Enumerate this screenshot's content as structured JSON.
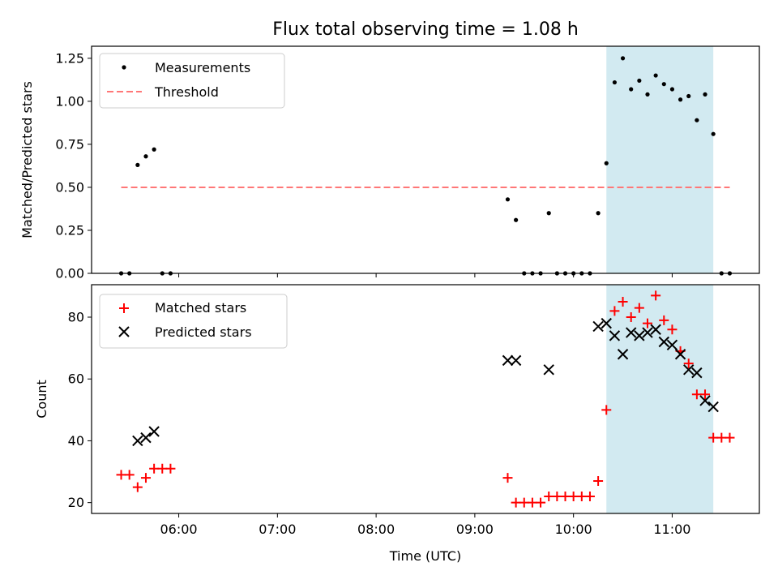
{
  "chart_data": [
    {
      "type": "scatter",
      "title": "Flux total observing time = 1.08 h",
      "ylabel": "Matched/Predicted stars",
      "xlabel": "",
      "ylim": [
        0,
        1.32
      ],
      "xlim": [
        "05:07",
        "11:53"
      ],
      "y_ticks": [
        "0.00",
        "0.25",
        "0.50",
        "0.75",
        "1.00",
        "1.25"
      ],
      "y_tick_values": [
        0,
        0.25,
        0.5,
        0.75,
        1.0,
        1.25
      ],
      "grid": false,
      "legend": "top-left",
      "highlight_span": {
        "start": "10:20",
        "end": "11:25",
        "color": "#add8e6"
      },
      "threshold": {
        "name": "Threshold",
        "value": 0.5,
        "start": "05:25",
        "end": "11:35",
        "color": "#ff7777"
      },
      "series": [
        {
          "name": "Measurements",
          "marker": "dot",
          "color": "#000000",
          "points": [
            [
              "05:25",
              0
            ],
            [
              "05:30",
              0
            ],
            [
              "05:35",
              0.63
            ],
            [
              "05:40",
              0.68
            ],
            [
              "05:45",
              0.72
            ],
            [
              "05:50",
              0
            ],
            [
              "05:55",
              0
            ],
            [
              "09:20",
              0.43
            ],
            [
              "09:25",
              0.31
            ],
            [
              "09:30",
              0
            ],
            [
              "09:35",
              0
            ],
            [
              "09:40",
              0
            ],
            [
              "09:45",
              0.35
            ],
            [
              "09:50",
              0
            ],
            [
              "09:55",
              0
            ],
            [
              "10:00",
              0
            ],
            [
              "10:05",
              0
            ],
            [
              "10:10",
              0
            ],
            [
              "10:15",
              0.35
            ],
            [
              "10:20",
              0.64
            ],
            [
              "10:25",
              1.11
            ],
            [
              "10:30",
              1.25
            ],
            [
              "10:35",
              1.07
            ],
            [
              "10:40",
              1.12
            ],
            [
              "10:45",
              1.04
            ],
            [
              "10:50",
              1.15
            ],
            [
              "10:55",
              1.1
            ],
            [
              "11:00",
              1.07
            ],
            [
              "11:05",
              1.01
            ],
            [
              "11:10",
              1.03
            ],
            [
              "11:15",
              0.89
            ],
            [
              "11:20",
              1.04
            ],
            [
              "11:25",
              0.81
            ],
            [
              "11:30",
              0
            ],
            [
              "11:35",
              0
            ]
          ]
        }
      ]
    },
    {
      "type": "scatter",
      "title": "",
      "ylabel": "Count",
      "xlabel": "Time (UTC)",
      "ylim": [
        16.5,
        90.5
      ],
      "xlim": [
        "05:07",
        "11:53"
      ],
      "y_ticks": [
        "20",
        "40",
        "60",
        "80"
      ],
      "y_tick_values": [
        20,
        40,
        60,
        80
      ],
      "x_ticks": [
        "06:00",
        "07:00",
        "08:00",
        "09:00",
        "10:00",
        "11:00"
      ],
      "grid": false,
      "legend": "top-left",
      "highlight_span": {
        "start": "10:20",
        "end": "11:25",
        "color": "#add8e6"
      },
      "series": [
        {
          "name": "Matched stars",
          "marker": "plus",
          "color": "#ff0000",
          "points": [
            [
              "05:25",
              29
            ],
            [
              "05:30",
              29
            ],
            [
              "05:35",
              25
            ],
            [
              "05:40",
              28
            ],
            [
              "05:45",
              31
            ],
            [
              "05:50",
              31
            ],
            [
              "05:55",
              31
            ],
            [
              "09:20",
              28
            ],
            [
              "09:25",
              20
            ],
            [
              "09:30",
              20
            ],
            [
              "09:35",
              20
            ],
            [
              "09:40",
              20
            ],
            [
              "09:45",
              22
            ],
            [
              "09:50",
              22
            ],
            [
              "09:55",
              22
            ],
            [
              "10:00",
              22
            ],
            [
              "10:05",
              22
            ],
            [
              "10:10",
              22
            ],
            [
              "10:15",
              27
            ],
            [
              "10:20",
              50
            ],
            [
              "10:25",
              82
            ],
            [
              "10:30",
              85
            ],
            [
              "10:35",
              80
            ],
            [
              "10:40",
              83
            ],
            [
              "10:45",
              78
            ],
            [
              "10:50",
              87
            ],
            [
              "10:55",
              79
            ],
            [
              "11:00",
              76
            ],
            [
              "11:05",
              69
            ],
            [
              "11:10",
              65
            ],
            [
              "11:15",
              55
            ],
            [
              "11:20",
              55
            ],
            [
              "11:25",
              41
            ],
            [
              "11:30",
              41
            ],
            [
              "11:35",
              41
            ]
          ]
        },
        {
          "name": "Predicted stars",
          "marker": "x",
          "color": "#000000",
          "points": [
            [
              "05:35",
              40
            ],
            [
              "05:40",
              41
            ],
            [
              "05:45",
              43
            ],
            [
              "09:20",
              66
            ],
            [
              "09:25",
              66
            ],
            [
              "09:45",
              63
            ],
            [
              "10:15",
              77
            ],
            [
              "10:20",
              78
            ],
            [
              "10:25",
              74
            ],
            [
              "10:30",
              68
            ],
            [
              "10:35",
              75
            ],
            [
              "10:40",
              74
            ],
            [
              "10:45",
              75
            ],
            [
              "10:50",
              76
            ],
            [
              "10:55",
              72
            ],
            [
              "11:00",
              71
            ],
            [
              "11:05",
              68
            ],
            [
              "11:10",
              63
            ],
            [
              "11:15",
              62
            ],
            [
              "11:20",
              53
            ],
            [
              "11:25",
              51
            ]
          ]
        }
      ]
    }
  ]
}
